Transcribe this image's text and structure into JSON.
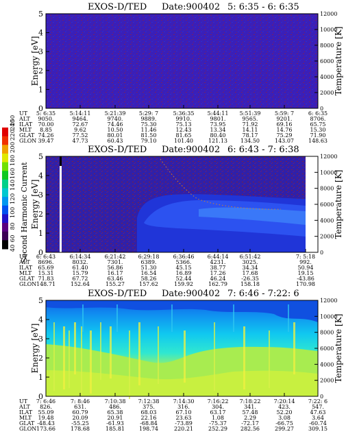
{
  "colorbar": {
    "label": "Second Harmonic Current",
    "ticks": [
      "40",
      "60",
      "80",
      "100",
      "120",
      "140",
      "160",
      "180",
      "200",
      "220",
      "240",
      "250"
    ]
  },
  "chart_data": [
    {
      "type": "heatmap",
      "title": "EXOS-D/TED",
      "date_label": "Date:900402",
      "time_range": "5: 6:35 - 6: 6:35",
      "ylabel": "Energy [eV]",
      "y2label": "Temperature [K]",
      "yticks": [
        "0",
        "1",
        "2",
        "3",
        "4",
        "5"
      ],
      "y2ticks": [
        "0",
        "2000",
        "4000",
        "6000",
        "8000",
        "10000",
        "12000"
      ],
      "ylim": [
        0,
        5
      ],
      "y2lim": [
        0,
        12000
      ],
      "axis_rows": {
        "labels": [
          "UT",
          "ALT",
          "ILAT",
          "MLT",
          "GLAT",
          "GLON"
        ],
        "columns": [
          [
            "5: 6:35",
            "9050.",
            "70.00",
            "8.85",
            "74.26",
            "39.47"
          ],
          [
            "5:14:11",
            "9464.",
            "72.67",
            "9.62",
            "77.52",
            "47.73"
          ],
          [
            "5:21:39",
            "9740.",
            "74.46",
            "10.50",
            "80.01",
            "60.43"
          ],
          [
            "5:29: 7",
            "9889.",
            "75.30",
            "11.46",
            "81.50",
            "79.10"
          ],
          [
            "5:36:35",
            "9910.",
            "75.13",
            "12.43",
            "81.65",
            "101.40"
          ],
          [
            "5:44:11",
            "9801.",
            "73.95",
            "13.34",
            "80.40",
            "121.13"
          ],
          [
            "5:51:39",
            "9565.",
            "71.92",
            "14.11",
            "78.17",
            "134.50"
          ],
          [
            "5:59: 7",
            "9201.",
            "69.16",
            "14.76",
            "75.29",
            "143.07"
          ],
          [
            "6: 6:35",
            "8706.",
            "65.75",
            "15.30",
            "71.90",
            "148.63"
          ]
        ]
      }
    },
    {
      "type": "heatmap",
      "title": "EXOS-D/TED",
      "date_label": "Date:900402",
      "time_range": "6: 6:43 - 7: 6:38",
      "ylabel": "Energy [eV]",
      "y2label": "Temperature [K]",
      "yticks": [
        "0",
        "1",
        "2",
        "3",
        "4",
        "5"
      ],
      "y2ticks": [
        "0",
        "2000",
        "4000",
        "6000",
        "8000",
        "10000",
        "12000"
      ],
      "ylim": [
        0,
        5
      ],
      "y2lim": [
        0,
        12000
      ],
      "axis_rows": {
        "labels": [
          "UT",
          "ALT",
          "ILAT",
          "MLT",
          "GLAT",
          "GLON"
        ],
        "columns": [
          [
            "6: 6:43",
            "8696.",
            "65.69",
            "15.31",
            "71.83",
            "148.71"
          ],
          [
            "6:14:34",
            "8032.",
            "61.40",
            "15.79",
            "67.72",
            "152.64"
          ],
          [
            "6:21:42",
            "7301.",
            "56.86",
            "16.17",
            "63.46",
            "155.27"
          ],
          [
            "6:29:18",
            "6389.",
            "51.30",
            "16.54",
            "58.26",
            "157.62"
          ],
          [
            "6:36:46",
            "5366.",
            "45.15",
            "16.89",
            "52.44",
            "159.92"
          ],
          [
            "6:44:14",
            "4231.",
            "38.77",
            "17.26",
            "46.24",
            "162.79"
          ],
          [
            "6:51:42",
            "3025.",
            "34.34",
            "17.68",
            "-26.35",
            "158.18"
          ],
          [
            "7: 5:18",
            "992.",
            "50.94",
            "19.15",
            "-43.86",
            "170.98"
          ]
        ]
      }
    },
    {
      "type": "heatmap",
      "title": "EXOS-D/TED",
      "date_label": "Date:900402",
      "time_range": "7: 6:46 - 7:22: 6",
      "ylabel": "Energy [eV]",
      "y2label": "Temperature [K]",
      "yticks": [
        "0",
        "1",
        "2",
        "3",
        "4",
        "5"
      ],
      "y2ticks": [
        "0",
        "2000",
        "4000",
        "6000",
        "8000",
        "10000",
        "12000"
      ],
      "ylim": [
        0,
        5
      ],
      "y2lim": [
        0,
        12000
      ],
      "axis_rows": {
        "labels": [
          "UT",
          "ALT",
          "ILAT",
          "MLT",
          "GLAT",
          "GLON"
        ],
        "columns": [
          [
            "7: 6:46",
            "826.",
            "55.09",
            "19.48",
            "-48.43",
            "173.66"
          ],
          [
            "7: 8:46",
            "631.",
            "60.79",
            "20.09",
            "-55.25",
            "178.68"
          ],
          [
            "7:10:38",
            "486.",
            "65.38",
            "20.91",
            "-61.93",
            "185.81"
          ],
          [
            "7:12:38",
            "375.",
            "68.03",
            "22.16",
            "-68.84",
            "198.74"
          ],
          [
            "7:14:30",
            "316.",
            "67.10",
            "23.63",
            "-73.89",
            "220.21"
          ],
          [
            "7:16:22",
            "304.",
            "63.17",
            "1.08",
            "-75.37",
            "252.29"
          ],
          [
            "7:18:22",
            "341.",
            "57.48",
            "2.29",
            "-72.17",
            "282.56"
          ],
          [
            "7:20:14",
            "423.",
            "52.20",
            "3.08",
            "-66.75",
            "299.27"
          ],
          [
            "7:22: 6",
            "547.",
            "47.63",
            "3.64",
            "-60.74",
            "309.15"
          ]
        ]
      }
    }
  ]
}
